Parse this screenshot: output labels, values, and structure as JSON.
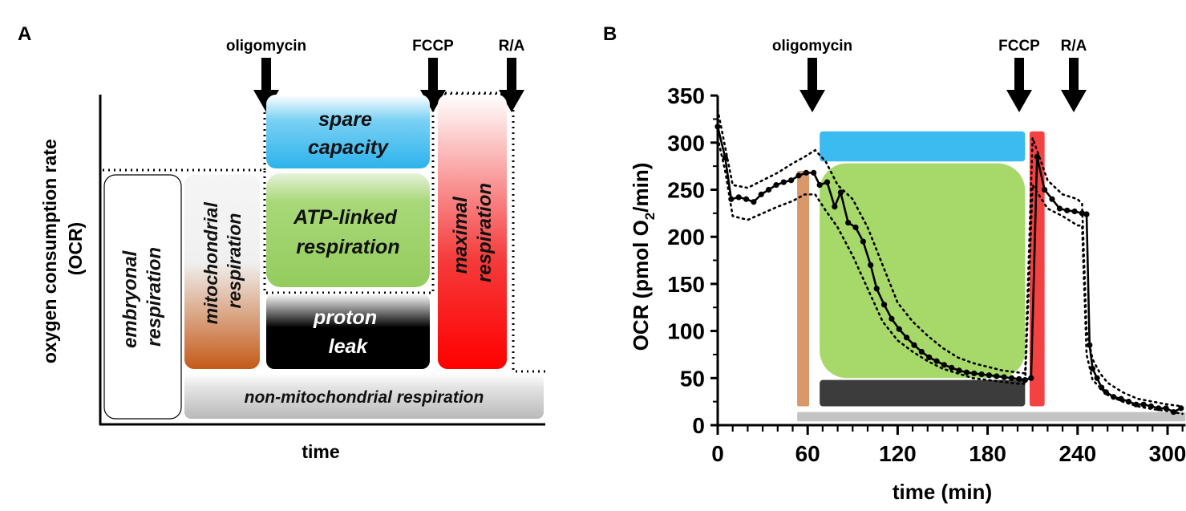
{
  "panel_a": {
    "letter": "A",
    "annotations": {
      "oligomycin": "oligomycin",
      "fccp": "FCCP",
      "ra": "R/A"
    },
    "ylabel_line1": "oxygen consumption rate",
    "ylabel_line2": "(OCR)",
    "xlabel": "time",
    "blocks": {
      "embryonal": [
        "embryonal",
        "respiration"
      ],
      "mitochondrial": [
        "mitochondrial",
        "respiration"
      ],
      "spare": [
        "spare",
        "capacity"
      ],
      "atp": [
        "ATP-linked",
        "respiration"
      ],
      "proton": [
        "proton",
        "leak"
      ],
      "maximal": [
        "maximal",
        "respiration"
      ],
      "nonmito": "non-mitochondrial respiration"
    }
  },
  "panel_b": {
    "letter": "B",
    "annotations": {
      "oligomycin": "oligomycin",
      "fccp": "FCCP",
      "ra": "R/A"
    },
    "ylabel_prefix": "OCR (pmol O",
    "ylabel_sub": "2",
    "ylabel_suffix": "/min)"
  },
  "colors": {
    "spare": "#3bbbef",
    "atp": "#a6d96a",
    "proton": "#3c3c3c",
    "maximal": "#f44242",
    "mito": "#c8672a",
    "nonmito": "#c4c4c4",
    "orange_bar": "#d8986a"
  },
  "chart_data": {
    "type": "line",
    "xlabel": "time (min)",
    "ylabel": "OCR (pmol O2/min)",
    "xlim": [
      0,
      312
    ],
    "ylim": [
      0,
      350
    ],
    "xticks": [
      0,
      60,
      120,
      180,
      240,
      300
    ],
    "yticks": [
      0,
      50,
      100,
      150,
      200,
      250,
      300,
      350
    ],
    "series": [
      {
        "name": "mean",
        "x": [
          0,
          5,
          9,
          14,
          19,
          24,
          29,
          34,
          39,
          44,
          49,
          54,
          59,
          64,
          68,
          73,
          78,
          82,
          87,
          92,
          97,
          102,
          106,
          111,
          116,
          121,
          126,
          131,
          136,
          141,
          146,
          151,
          156,
          161,
          166,
          171,
          176,
          181,
          186,
          191,
          196,
          201,
          205,
          209,
          213,
          218,
          223,
          228,
          233,
          238,
          243,
          246,
          248,
          250,
          253,
          256,
          259,
          264,
          269,
          274,
          279,
          284,
          289,
          294,
          299,
          304,
          309
        ],
        "y": [
          317,
          284,
          240,
          242,
          240,
          237,
          245,
          250,
          255,
          258,
          260,
          265,
          268,
          268,
          255,
          258,
          232,
          247,
          215,
          210,
          195,
          170,
          145,
          128,
          113,
          102,
          93,
          85,
          78,
          72,
          68,
          64,
          61,
          58,
          56,
          55,
          54,
          53,
          52,
          51,
          50,
          49,
          48,
          50,
          285,
          250,
          240,
          230,
          228,
          227,
          225,
          224,
          85,
          60,
          50,
          40,
          35,
          30,
          28,
          25,
          22,
          22,
          20,
          18,
          18,
          14,
          18
        ]
      },
      {
        "name": "upper_band",
        "x": [
          0,
          5,
          10,
          20,
          30,
          40,
          50,
          58,
          65,
          72,
          80,
          90,
          100,
          110,
          120,
          130,
          140,
          150,
          160,
          170,
          180,
          190,
          200,
          205,
          210,
          220,
          230,
          240,
          243,
          246,
          250,
          255,
          260,
          270,
          280,
          290,
          300,
          310
        ],
        "y": [
          335,
          295,
          255,
          252,
          260,
          268,
          278,
          285,
          292,
          280,
          255,
          240,
          210,
          170,
          130,
          110,
          95,
          82,
          72,
          66,
          62,
          58,
          56,
          55,
          305,
          260,
          245,
          240,
          235,
          100,
          70,
          55,
          45,
          35,
          28,
          25,
          22,
          20
        ]
      },
      {
        "name": "lower_band",
        "x": [
          0,
          5,
          10,
          20,
          30,
          40,
          50,
          58,
          65,
          72,
          80,
          90,
          100,
          110,
          120,
          130,
          140,
          150,
          160,
          170,
          180,
          190,
          200,
          205,
          210,
          220,
          230,
          240,
          243,
          246,
          250,
          255,
          260,
          270,
          280,
          290,
          300,
          310
        ],
        "y": [
          305,
          270,
          222,
          218,
          225,
          232,
          238,
          245,
          245,
          228,
          210,
          180,
          145,
          110,
          90,
          78,
          68,
          60,
          55,
          50,
          48,
          46,
          44,
          44,
          255,
          230,
          222,
          212,
          212,
          75,
          48,
          40,
          32,
          25,
          20,
          17,
          15,
          12
        ]
      }
    ],
    "highlight_bars": [
      {
        "name": "spare",
        "x": [
          68,
          205
        ],
        "y": [
          280,
          312
        ]
      },
      {
        "name": "atp",
        "x": [
          68,
          205
        ],
        "y": [
          50,
          278
        ]
      },
      {
        "name": "proton",
        "x": [
          68,
          205
        ],
        "y": [
          20,
          48
        ]
      },
      {
        "name": "maximal",
        "x": [
          208,
          218
        ],
        "y": [
          20,
          312
        ]
      },
      {
        "name": "mito",
        "x": [
          53,
          61
        ],
        "y": [
          20,
          270
        ]
      },
      {
        "name": "nonmito",
        "x": [
          53,
          312
        ],
        "y": [
          4,
          14
        ]
      }
    ],
    "annotations": [
      {
        "label": "oligomycin",
        "x": 65
      },
      {
        "label": "FCCP",
        "x": 200
      },
      {
        "label": "R/A",
        "x": 240
      }
    ]
  }
}
